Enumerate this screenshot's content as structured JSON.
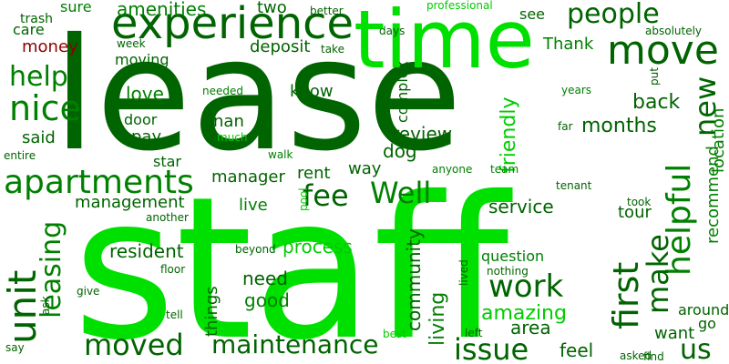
{
  "palette": {
    "dark_green": "#006400",
    "medium_green": "#008000",
    "bright_green": "#00cc00",
    "lime": "#00e000",
    "dark_red": "#8b0000"
  },
  "words": [
    {
      "text": "staff",
      "weight": 1.0,
      "color": "lime",
      "orientation": "horizontal"
    },
    {
      "text": "lease",
      "weight": 0.98,
      "color": "dark_green",
      "orientation": "horizontal"
    },
    {
      "text": "time",
      "weight": 0.45,
      "color": "lime",
      "orientation": "horizontal"
    },
    {
      "text": "experience",
      "weight": 0.33,
      "color": "dark_green",
      "orientation": "horizontal"
    },
    {
      "text": "maintenance",
      "weight": 0.22,
      "color": "dark_green",
      "orientation": "horizontal"
    },
    {
      "text": "apartments",
      "weight": 0.22,
      "color": "medium_green",
      "orientation": "horizontal"
    },
    {
      "text": "staff",
      "weight": 0.0,
      "color": "",
      "orientation": "",
      "_unused": true
    },
    {
      "text": "people",
      "weight": 0.2,
      "color": "dark_green",
      "orientation": "horizontal"
    },
    {
      "text": "move",
      "weight": 0.23,
      "color": "dark_green",
      "orientation": "horizontal"
    },
    {
      "text": "nice",
      "weight": 0.22,
      "color": "medium_green",
      "orientation": "horizontal"
    },
    {
      "text": "help",
      "weight": 0.2,
      "color": "medium_green",
      "orientation": "horizontal"
    },
    {
      "text": "unit",
      "weight": 0.22,
      "color": "dark_green",
      "orientation": "vertical"
    },
    {
      "text": "leasing",
      "weight": 0.2,
      "color": "medium_green",
      "orientation": "vertical"
    },
    {
      "text": "moved",
      "weight": 0.22,
      "color": "dark_green",
      "orientation": "horizontal"
    },
    {
      "text": "issue",
      "weight": 0.22,
      "color": "dark_green",
      "orientation": "horizontal"
    },
    {
      "text": "Well",
      "weight": 0.22,
      "color": "medium_green",
      "orientation": "horizontal"
    },
    {
      "text": "fee",
      "weight": 0.22,
      "color": "dark_green",
      "orientation": "horizontal"
    },
    {
      "text": "work",
      "weight": 0.22,
      "color": "dark_green",
      "orientation": "horizontal"
    },
    {
      "text": "helpful",
      "weight": 0.2,
      "color": "medium_green",
      "orientation": "vertical"
    },
    {
      "text": "new",
      "weight": 0.2,
      "color": "dark_green",
      "orientation": "vertical"
    },
    {
      "text": "first",
      "weight": 0.2,
      "color": "dark_green",
      "orientation": "vertical"
    },
    {
      "text": "make",
      "weight": 0.2,
      "color": "dark_green",
      "orientation": "vertical"
    },
    {
      "text": "us",
      "weight": 0.2,
      "color": "dark_green",
      "orientation": "horizontal"
    },
    {
      "text": "amazing",
      "weight": 0.16,
      "color": "bright_green",
      "orientation": "horizontal"
    },
    {
      "text": "living",
      "weight": 0.16,
      "color": "medium_green",
      "orientation": "vertical"
    },
    {
      "text": "friendly",
      "weight": 0.16,
      "color": "bright_green",
      "orientation": "vertical"
    },
    {
      "text": "amenities",
      "weight": 0.14,
      "color": "medium_green",
      "orientation": "horizontal"
    },
    {
      "text": "process",
      "weight": 0.14,
      "color": "bright_green",
      "orientation": "horizontal"
    },
    {
      "text": "review",
      "weight": 0.14,
      "color": "dark_green",
      "orientation": "horizontal"
    },
    {
      "text": "back",
      "weight": 0.14,
      "color": "dark_green",
      "orientation": "horizontal"
    },
    {
      "text": "months",
      "weight": 0.14,
      "color": "dark_green",
      "orientation": "horizontal"
    },
    {
      "text": "management",
      "weight": 0.13,
      "color": "dark_green",
      "orientation": "horizontal"
    },
    {
      "text": "resident",
      "weight": 0.13,
      "color": "dark_green",
      "orientation": "horizontal"
    },
    {
      "text": "good",
      "weight": 0.13,
      "color": "medium_green",
      "orientation": "horizontal"
    },
    {
      "text": "need",
      "weight": 0.13,
      "color": "dark_green",
      "orientation": "horizontal"
    },
    {
      "text": "service",
      "weight": 0.13,
      "color": "dark_green",
      "orientation": "horizontal"
    },
    {
      "text": "community",
      "weight": 0.12,
      "color": "dark_green",
      "orientation": "vertical"
    },
    {
      "text": "area",
      "weight": 0.12,
      "color": "dark_green",
      "orientation": "horizontal"
    },
    {
      "text": "feel",
      "weight": 0.12,
      "color": "dark_green",
      "orientation": "horizontal"
    },
    {
      "text": "recommend",
      "weight": 0.11,
      "color": "medium_green",
      "orientation": "vertical"
    },
    {
      "text": "location",
      "weight": 0.11,
      "color": "medium_green",
      "orientation": "vertical"
    },
    {
      "text": "manager",
      "weight": 0.11,
      "color": "dark_green",
      "orientation": "horizontal"
    },
    {
      "text": "rent",
      "weight": 0.11,
      "color": "dark_green",
      "orientation": "horizontal"
    },
    {
      "text": "way",
      "weight": 0.11,
      "color": "dark_green",
      "orientation": "horizontal"
    },
    {
      "text": "live",
      "weight": 0.1,
      "color": "medium_green",
      "orientation": "horizontal"
    },
    {
      "text": "tour",
      "weight": 0.1,
      "color": "dark_green",
      "orientation": "horizontal"
    },
    {
      "text": "question",
      "weight": 0.1,
      "color": "medium_green",
      "orientation": "horizontal"
    },
    {
      "text": "things",
      "weight": 0.1,
      "color": "dark_green",
      "orientation": "vertical"
    },
    {
      "text": "want",
      "weight": 0.1,
      "color": "dark_green",
      "orientation": "horizontal"
    },
    {
      "text": "around",
      "weight": 0.09,
      "color": "dark_green",
      "orientation": "horizontal"
    },
    {
      "text": "Thank",
      "weight": 0.09,
      "color": "medium_green",
      "orientation": "horizontal"
    },
    {
      "text": "know",
      "weight": 0.09,
      "color": "dark_green",
      "orientation": "horizontal"
    },
    {
      "text": "love",
      "weight": 0.09,
      "color": "medium_green",
      "orientation": "horizontal"
    },
    {
      "text": "nan",
      "weight": 0.09,
      "color": "dark_green",
      "orientation": "horizontal"
    },
    {
      "text": "pay",
      "weight": 0.09,
      "color": "dark_green",
      "orientation": "horizontal"
    },
    {
      "text": "said",
      "weight": 0.09,
      "color": "dark_green",
      "orientation": "horizontal"
    },
    {
      "text": "dog",
      "weight": 0.09,
      "color": "dark_green",
      "orientation": "horizontal"
    },
    {
      "text": "money",
      "weight": 0.09,
      "color": "dark_red",
      "orientation": "horizontal"
    },
    {
      "text": "care",
      "weight": 0.09,
      "color": "dark_green",
      "orientation": "horizontal"
    },
    {
      "text": "two",
      "weight": 0.09,
      "color": "dark_green",
      "orientation": "horizontal"
    },
    {
      "text": "deposit",
      "weight": 0.09,
      "color": "dark_green",
      "orientation": "horizontal"
    },
    {
      "text": "see",
      "weight": 0.08,
      "color": "dark_green",
      "orientation": "horizontal"
    },
    {
      "text": "sure",
      "weight": 0.08,
      "color": "medium_green",
      "orientation": "horizontal"
    },
    {
      "text": "moving",
      "weight": 0.08,
      "color": "dark_green",
      "orientation": "horizontal"
    },
    {
      "text": "door",
      "weight": 0.08,
      "color": "dark_green",
      "orientation": "horizontal"
    },
    {
      "text": "star",
      "weight": 0.07,
      "color": "dark_green",
      "orientation": "horizontal"
    },
    {
      "text": "go",
      "weight": 0.07,
      "color": "dark_green",
      "orientation": "horizontal"
    },
    {
      "text": "complex",
      "weight": 0.07,
      "color": "dark_green",
      "orientation": "vertical"
    },
    {
      "text": "trash",
      "weight": 0.06,
      "color": "dark_green",
      "orientation": "horizontal"
    },
    {
      "text": "better",
      "weight": 0.06,
      "color": "dark_green",
      "orientation": "horizontal"
    },
    {
      "text": "professional",
      "weight": 0.06,
      "color": "bright_green",
      "orientation": "horizontal"
    },
    {
      "text": "week",
      "weight": 0.06,
      "color": "dark_green",
      "orientation": "horizontal"
    },
    {
      "text": "take",
      "weight": 0.06,
      "color": "dark_green",
      "orientation": "horizontal"
    },
    {
      "text": "days",
      "weight": 0.06,
      "color": "dark_green",
      "orientation": "horizontal"
    },
    {
      "text": "absolutely",
      "weight": 0.06,
      "color": "dark_green",
      "orientation": "horizontal"
    },
    {
      "text": "put",
      "weight": 0.06,
      "color": "dark_green",
      "orientation": "vertical"
    },
    {
      "text": "needed",
      "weight": 0.06,
      "color": "medium_green",
      "orientation": "horizontal"
    },
    {
      "text": "years",
      "weight": 0.06,
      "color": "medium_green",
      "orientation": "horizontal"
    },
    {
      "text": "much",
      "weight": 0.06,
      "color": "bright_green",
      "orientation": "horizontal"
    },
    {
      "text": "far",
      "weight": 0.06,
      "color": "dark_green",
      "orientation": "horizontal"
    },
    {
      "text": "entire",
      "weight": 0.06,
      "color": "dark_green",
      "orientation": "horizontal"
    },
    {
      "text": "walk",
      "weight": 0.06,
      "color": "medium_green",
      "orientation": "horizontal"
    },
    {
      "text": "anyone",
      "weight": 0.06,
      "color": "medium_green",
      "orientation": "horizontal"
    },
    {
      "text": "team",
      "weight": 0.06,
      "color": "medium_green",
      "orientation": "horizontal"
    },
    {
      "text": "tenant",
      "weight": 0.06,
      "color": "dark_green",
      "orientation": "horizontal"
    },
    {
      "text": "pool",
      "weight": 0.06,
      "color": "bright_green",
      "orientation": "vertical"
    },
    {
      "text": "took",
      "weight": 0.06,
      "color": "dark_green",
      "orientation": "horizontal"
    },
    {
      "text": "another",
      "weight": 0.06,
      "color": "dark_green",
      "orientation": "horizontal"
    },
    {
      "text": "beyond",
      "weight": 0.06,
      "color": "dark_green",
      "orientation": "horizontal"
    },
    {
      "text": "floor",
      "weight": 0.06,
      "color": "dark_green",
      "orientation": "horizontal"
    },
    {
      "text": "lived",
      "weight": 0.06,
      "color": "dark_green",
      "orientation": "vertical"
    },
    {
      "text": "nothing",
      "weight": 0.06,
      "color": "dark_green",
      "orientation": "horizontal"
    },
    {
      "text": "give",
      "weight": 0.06,
      "color": "dark_green",
      "orientation": "horizontal"
    },
    {
      "text": "tell",
      "weight": 0.06,
      "color": "dark_green",
      "orientation": "horizontal"
    },
    {
      "text": "ask",
      "weight": 0.06,
      "color": "dark_green",
      "orientation": "vertical"
    },
    {
      "text": "say",
      "weight": 0.06,
      "color": "dark_green",
      "orientation": "horizontal"
    },
    {
      "text": "best",
      "weight": 0.06,
      "color": "bright_green",
      "orientation": "horizontal"
    },
    {
      "text": "left",
      "weight": 0.06,
      "color": "dark_green",
      "orientation": "horizontal"
    },
    {
      "text": "asked",
      "weight": 0.06,
      "color": "dark_green",
      "orientation": "horizontal"
    },
    {
      "text": "find",
      "weight": 0.06,
      "color": "dark_green",
      "orientation": "horizontal"
    }
  ]
}
